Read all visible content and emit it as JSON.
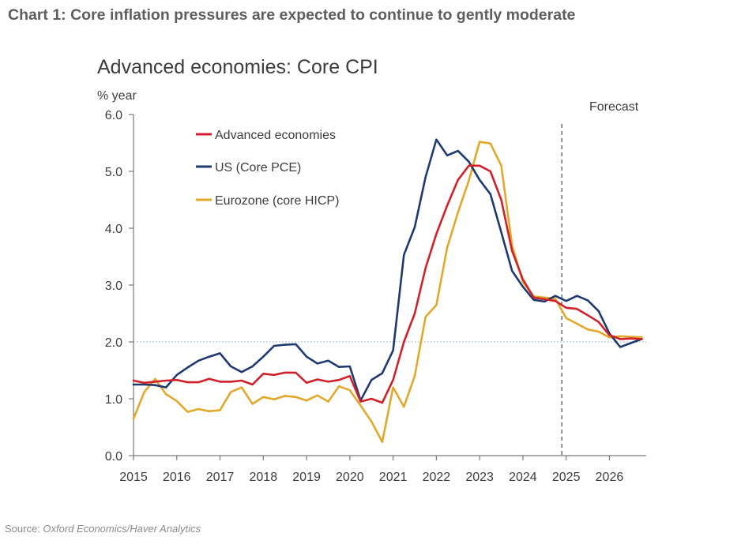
{
  "heading": "Chart 1: Core inflation pressures are expected to continue to gently moderate",
  "source": {
    "label": "Source: ",
    "text": "Oxford Economics/Haver Analytics"
  },
  "chart_data": {
    "type": "line",
    "title": "Advanced economies: Core CPI",
    "ylabel": "% year",
    "xlabel": "",
    "ylim": [
      0,
      6
    ],
    "xlim": [
      2015,
      2026.85
    ],
    "yticks": [
      0,
      1,
      2,
      3,
      4,
      5,
      6
    ],
    "ytick_labels": [
      "0.0",
      "1.0",
      "2.0",
      "3.0",
      "4.0",
      "5.0",
      "6.0"
    ],
    "xticks": [
      2015,
      2016,
      2017,
      2018,
      2019,
      2020,
      2021,
      2022,
      2023,
      2024,
      2025,
      2026
    ],
    "xtick_labels": [
      "2015",
      "2016",
      "2017",
      "2018",
      "2019",
      "2020",
      "2021",
      "2022",
      "2023",
      "2024",
      "2025",
      "2026"
    ],
    "legend_position": "top-left",
    "reference_line": {
      "y": 2.0,
      "color": "#9db3dc",
      "style": "dotted"
    },
    "forecast": {
      "x": 2024.9,
      "label": "Forecast"
    },
    "grid": false,
    "series": [
      {
        "name": "Advanced economies",
        "color": "#d0212b",
        "x": [
          2015,
          2015.25,
          2015.5,
          2015.75,
          2016,
          2016.25,
          2016.5,
          2016.75,
          2017,
          2017.25,
          2017.5,
          2017.75,
          2018,
          2018.25,
          2018.5,
          2018.75,
          2019,
          2019.25,
          2019.5,
          2019.75,
          2020,
          2020.25,
          2020.5,
          2020.75,
          2021,
          2021.25,
          2021.5,
          2021.75,
          2022,
          2022.25,
          2022.5,
          2022.75,
          2023,
          2023.25,
          2023.5,
          2023.75,
          2024,
          2024.25,
          2024.5,
          2024.75,
          2025,
          2025.25,
          2025.5,
          2025.75,
          2026,
          2026.25,
          2026.5,
          2026.75
        ],
        "values": [
          1.32,
          1.28,
          1.3,
          1.32,
          1.33,
          1.29,
          1.29,
          1.35,
          1.3,
          1.3,
          1.32,
          1.25,
          1.44,
          1.42,
          1.46,
          1.46,
          1.28,
          1.34,
          1.3,
          1.33,
          1.4,
          0.95,
          1.0,
          0.93,
          1.33,
          2.0,
          2.5,
          3.3,
          3.9,
          4.4,
          4.85,
          5.1,
          5.1,
          5.0,
          4.5,
          3.6,
          3.1,
          2.78,
          2.75,
          2.72,
          2.6,
          2.58,
          2.47,
          2.35,
          2.12,
          2.05,
          2.06,
          2.05
        ]
      },
      {
        "name": "US (Core PCE)",
        "color": "#1f3a6e",
        "x": [
          2015,
          2015.25,
          2015.5,
          2015.75,
          2016,
          2016.25,
          2016.5,
          2016.75,
          2017,
          2017.25,
          2017.5,
          2017.75,
          2018,
          2018.25,
          2018.5,
          2018.75,
          2019,
          2019.25,
          2019.5,
          2019.75,
          2020,
          2020.25,
          2020.5,
          2020.75,
          2021,
          2021.25,
          2021.5,
          2021.75,
          2022,
          2022.25,
          2022.5,
          2022.75,
          2023,
          2023.25,
          2023.5,
          2023.75,
          2024,
          2024.25,
          2024.5,
          2024.75,
          2025,
          2025.25,
          2025.5,
          2025.75,
          2026,
          2026.25,
          2026.5,
          2026.75
        ],
        "values": [
          1.25,
          1.25,
          1.24,
          1.2,
          1.42,
          1.55,
          1.67,
          1.74,
          1.8,
          1.57,
          1.47,
          1.57,
          1.74,
          1.93,
          1.95,
          1.96,
          1.74,
          1.62,
          1.67,
          1.56,
          1.57,
          0.97,
          1.33,
          1.45,
          1.85,
          3.53,
          4.02,
          4.9,
          5.56,
          5.28,
          5.36,
          5.17,
          4.85,
          4.6,
          3.93,
          3.25,
          2.97,
          2.74,
          2.71,
          2.81,
          2.72,
          2.81,
          2.73,
          2.54,
          2.15,
          1.91,
          1.98,
          2.05
        ]
      },
      {
        "name": "Eurozone (core HICP)",
        "color": "#e1a82a",
        "x": [
          2015,
          2015.25,
          2015.5,
          2015.75,
          2016,
          2016.25,
          2016.5,
          2016.75,
          2017,
          2017.25,
          2017.5,
          2017.75,
          2018,
          2018.25,
          2018.5,
          2018.75,
          2019,
          2019.25,
          2019.5,
          2019.75,
          2020,
          2020.25,
          2020.5,
          2020.75,
          2021,
          2021.25,
          2021.5,
          2021.75,
          2022,
          2022.25,
          2022.5,
          2022.75,
          2023,
          2023.25,
          2023.5,
          2023.75,
          2024,
          2024.25,
          2024.5,
          2024.75,
          2025,
          2025.25,
          2025.5,
          2025.75,
          2026,
          2026.25,
          2026.5,
          2026.75
        ],
        "values": [
          0.65,
          1.12,
          1.35,
          1.08,
          0.96,
          0.77,
          0.82,
          0.78,
          0.8,
          1.12,
          1.2,
          0.91,
          1.03,
          0.99,
          1.05,
          1.03,
          0.97,
          1.06,
          0.95,
          1.22,
          1.15,
          0.88,
          0.6,
          0.24,
          1.2,
          0.86,
          1.4,
          2.44,
          2.65,
          3.66,
          4.28,
          4.84,
          5.52,
          5.49,
          5.1,
          3.7,
          3.05,
          2.8,
          2.78,
          2.76,
          2.42,
          2.32,
          2.22,
          2.18,
          2.08,
          2.1,
          2.09,
          2.08
        ]
      }
    ]
  }
}
